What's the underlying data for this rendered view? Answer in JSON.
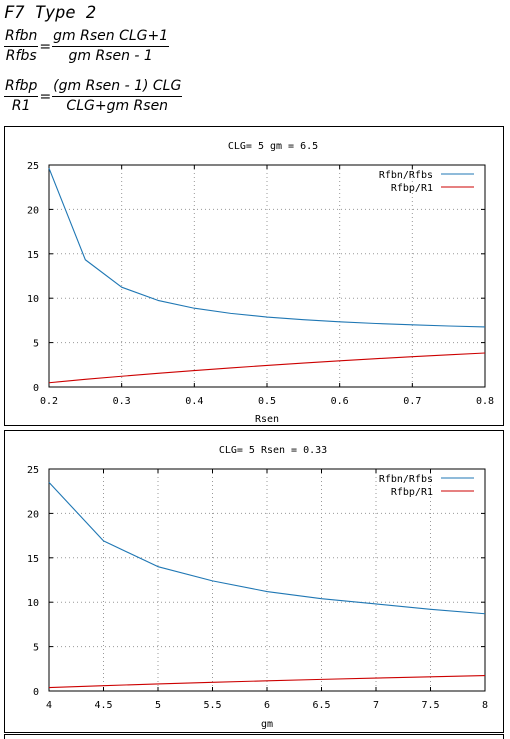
{
  "heading": "F7 Type 2",
  "equations": [
    {
      "lhs_num": "Rfbn",
      "lhs_den": "Rfbs",
      "eq": "=",
      "rhs_num": "gm Rsen CLG+1",
      "rhs_den": "gm Rsen - 1"
    },
    {
      "lhs_num": "Rfbp",
      "lhs_den": "R1",
      "eq": "=",
      "rhs_num": "(gm Rsen - 1) CLG",
      "rhs_den": "CLG+gm Rsen"
    }
  ],
  "colors": {
    "rfbn": "#1f77b4",
    "rfbp": "#cc0000"
  },
  "chart_data": [
    {
      "type": "line",
      "title": "CLG= 5 gm = 6.5",
      "xlabel": "Rsen",
      "ylabel": "",
      "xlim": [
        0.2,
        0.8
      ],
      "ylim": [
        0,
        25
      ],
      "x_ticks": [
        "0.2",
        "0.3",
        "0.4",
        "0.5",
        "0.6",
        "0.7",
        "0.8"
      ],
      "y_ticks": [
        "0",
        "5",
        "10",
        "15",
        "20",
        "25"
      ],
      "grid": true,
      "legend": "top-right",
      "x": [
        0.2,
        0.25,
        0.3,
        0.35,
        0.4,
        0.45,
        0.5,
        0.55,
        0.6,
        0.65,
        0.7,
        0.75,
        0.8
      ],
      "series": [
        {
          "name": "Rfbn/Rfbs",
          "values": [
            24.64,
            14.33,
            11.24,
            9.75,
            8.87,
            8.29,
            7.88,
            7.58,
            7.34,
            7.15,
            7.0,
            6.87,
            6.76
          ]
        },
        {
          "name": "Rfbp/R1",
          "values": [
            0.48,
            0.86,
            1.21,
            1.54,
            1.85,
            2.15,
            2.43,
            2.7,
            2.95,
            3.19,
            3.41,
            3.63,
            3.83
          ]
        }
      ]
    },
    {
      "type": "line",
      "title": "CLG= 5 Rsen = 0.33",
      "xlabel": "gm",
      "ylabel": "",
      "xlim": [
        4,
        8
      ],
      "ylim": [
        0,
        25
      ],
      "x_ticks": [
        "4",
        "4.5",
        "5",
        "5.5",
        "6",
        "6.5",
        "7",
        "7.5",
        "8"
      ],
      "y_ticks": [
        "0",
        "5",
        "10",
        "15",
        "20",
        "25"
      ],
      "grid": true,
      "legend": "top-right",
      "x": [
        4,
        4.5,
        5,
        5.5,
        6,
        6.5,
        7,
        7.5,
        8
      ],
      "series": [
        {
          "name": "Rfbn/Rfbs",
          "values": [
            23.5,
            16.9,
            14.0,
            12.4,
            11.2,
            10.4,
            9.8,
            9.2,
            8.7
          ]
        },
        {
          "name": "Rfbp/R1",
          "values": [
            0.39,
            0.6,
            0.8,
            0.98,
            1.15,
            1.31,
            1.46,
            1.6,
            1.74
          ]
        }
      ]
    }
  ]
}
